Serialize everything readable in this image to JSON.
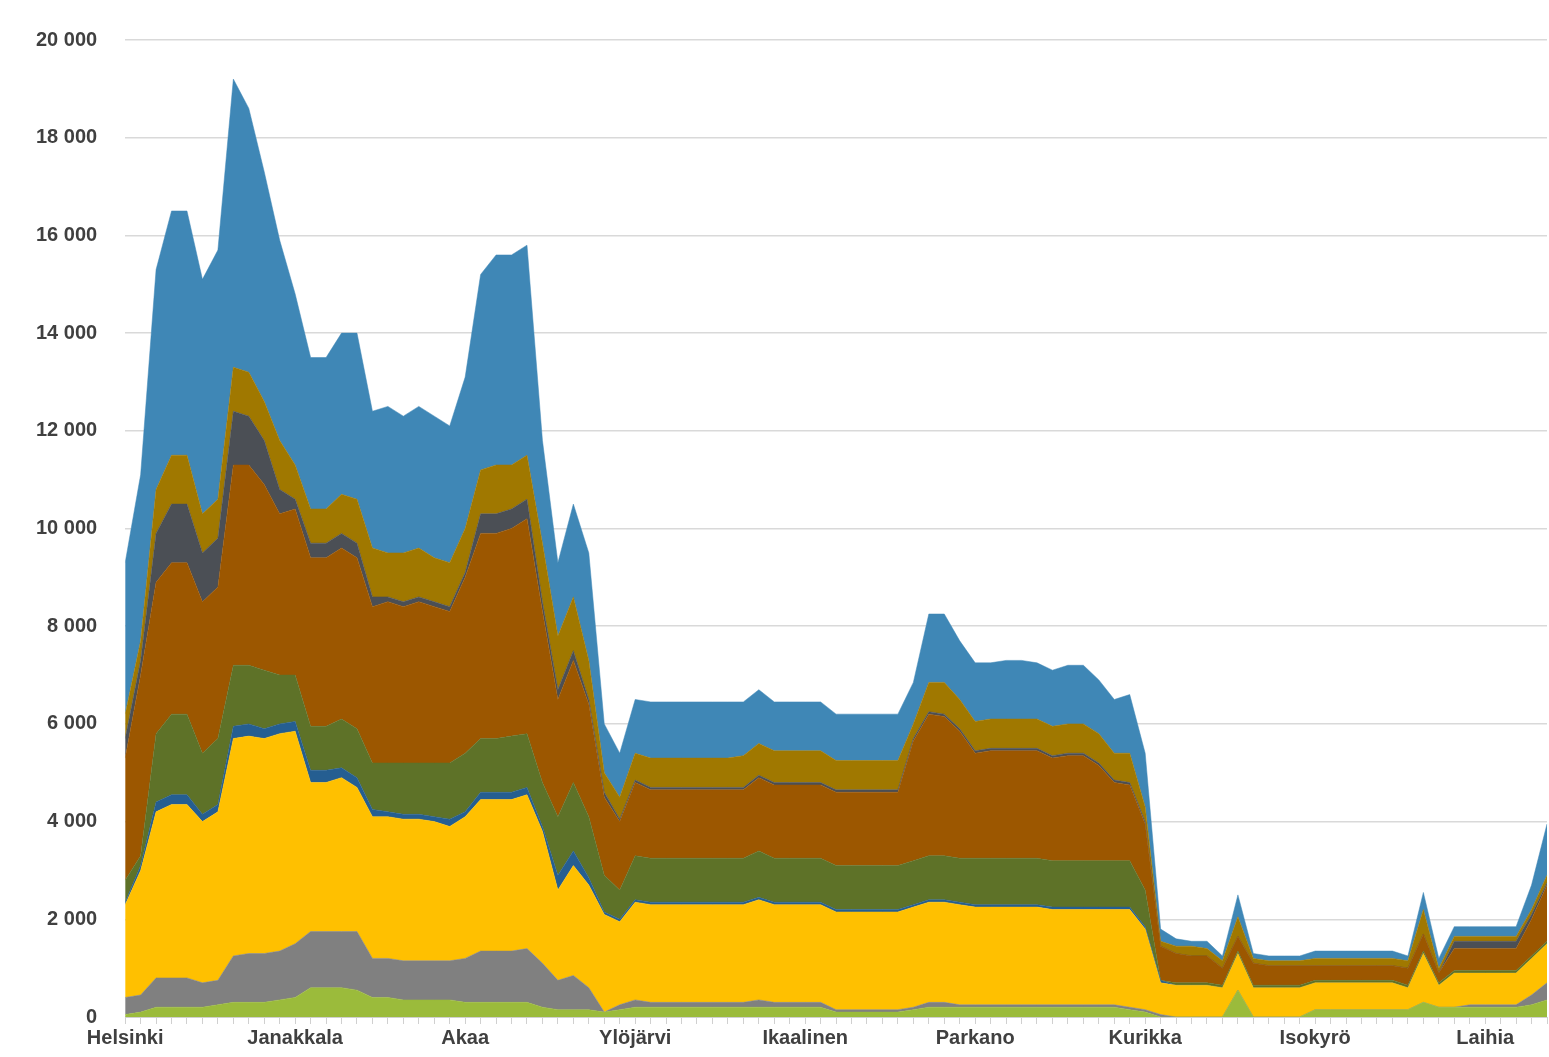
{
  "chart_data": {
    "type": "area",
    "stacked": true,
    "grid": "y",
    "legend": false,
    "marker": "none",
    "categories": [
      "Helsinki",
      null,
      null,
      null,
      null,
      null,
      null,
      null,
      null,
      null,
      null,
      "Janakkala",
      null,
      null,
      null,
      null,
      null,
      null,
      null,
      null,
      null,
      null,
      "Akaa",
      null,
      null,
      null,
      null,
      null,
      null,
      null,
      null,
      null,
      null,
      "Ylöjärvi",
      null,
      null,
      null,
      null,
      null,
      null,
      null,
      null,
      null,
      null,
      "Ikaalinen",
      null,
      null,
      null,
      null,
      null,
      null,
      null,
      null,
      null,
      null,
      "Parkano",
      null,
      null,
      null,
      null,
      null,
      null,
      null,
      null,
      null,
      null,
      "Kurikka",
      null,
      null,
      null,
      null,
      null,
      null,
      null,
      null,
      null,
      null,
      "Isokyrö",
      null,
      null,
      null,
      null,
      null,
      null,
      null,
      null,
      null,
      null,
      "Laihia",
      null,
      null,
      null,
      null
    ],
    "ylim": [
      0,
      20000
    ],
    "yticks": [
      {
        "value": 0,
        "label": "0"
      },
      {
        "value": 2000,
        "label": "2 000"
      },
      {
        "value": 4000,
        "label": "4 000"
      },
      {
        "value": 6000,
        "label": "6 000"
      },
      {
        "value": 8000,
        "label": "8 000"
      },
      {
        "value": 10000,
        "label": "10 000"
      },
      {
        "value": 12000,
        "label": "12 000"
      },
      {
        "value": 14000,
        "label": "14 000"
      },
      {
        "value": 16000,
        "label": "16 000"
      },
      {
        "value": 18000,
        "label": "18 000"
      },
      {
        "value": 20000,
        "label": "20 000"
      }
    ],
    "series": [
      {
        "color": "#9bbb3b",
        "values": [
          50,
          100,
          200,
          200,
          200,
          200,
          250,
          300,
          300,
          300,
          350,
          400,
          600,
          600,
          600,
          550,
          400,
          400,
          350,
          350,
          350,
          350,
          300,
          300,
          300,
          300,
          300,
          200,
          150,
          150,
          150,
          100,
          150,
          200,
          200,
          200,
          200,
          200,
          200,
          200,
          200,
          200,
          200,
          200,
          200,
          200,
          100,
          100,
          100,
          100,
          100,
          150,
          200,
          200,
          200,
          200,
          200,
          200,
          200,
          200,
          200,
          200,
          200,
          200,
          200,
          150,
          100,
          0,
          0,
          0,
          0,
          0,
          550,
          0,
          0,
          0,
          0,
          150,
          150,
          150,
          150,
          150,
          150,
          150,
          300,
          200,
          200,
          200,
          200,
          200,
          200,
          250,
          350
        ]
      },
      {
        "color": "#808080",
        "values": [
          350,
          350,
          600,
          600,
          600,
          500,
          500,
          950,
          1000,
          1000,
          1000,
          1100,
          1150,
          1150,
          1150,
          1200,
          800,
          800,
          800,
          800,
          800,
          800,
          900,
          1050,
          1050,
          1050,
          1100,
          900,
          600,
          700,
          450,
          0,
          100,
          150,
          100,
          100,
          100,
          100,
          100,
          100,
          100,
          150,
          100,
          100,
          100,
          100,
          50,
          50,
          50,
          50,
          50,
          50,
          100,
          100,
          50,
          50,
          50,
          50,
          50,
          50,
          50,
          50,
          50,
          50,
          50,
          50,
          50,
          50,
          0,
          0,
          0,
          0,
          0,
          0,
          0,
          0,
          0,
          0,
          0,
          0,
          0,
          0,
          0,
          0,
          0,
          0,
          0,
          50,
          50,
          50,
          50,
          200,
          350
        ]
      },
      {
        "color": "#ffc000",
        "values": [
          1900,
          2550,
          3400,
          3550,
          3550,
          3300,
          3450,
          4450,
          4450,
          4400,
          4450,
          4350,
          3050,
          3050,
          3150,
          2950,
          2900,
          2900,
          2900,
          2900,
          2850,
          2750,
          2900,
          3100,
          3100,
          3100,
          3150,
          2700,
          1850,
          2250,
          2100,
          2000,
          1700,
          2000,
          2000,
          2000,
          2000,
          2000,
          2000,
          2000,
          2000,
          2050,
          2000,
          2000,
          2000,
          2000,
          2000,
          2000,
          2000,
          2000,
          2000,
          2050,
          2050,
          2050,
          2050,
          2000,
          2000,
          2000,
          2000,
          2000,
          1950,
          1950,
          1950,
          1950,
          1950,
          2000,
          1650,
          650,
          650,
          650,
          650,
          600,
          750,
          600,
          600,
          600,
          600,
          550,
          550,
          550,
          550,
          550,
          550,
          450,
          1000,
          450,
          700,
          650,
          650,
          650,
          650,
          750,
          800
        ]
      },
      {
        "color": "#255e91",
        "values": [
          50,
          100,
          200,
          200,
          200,
          150,
          150,
          250,
          250,
          200,
          200,
          200,
          250,
          250,
          200,
          200,
          150,
          100,
          100,
          100,
          100,
          150,
          100,
          150,
          150,
          150,
          150,
          100,
          300,
          300,
          150,
          50,
          50,
          50,
          50,
          50,
          50,
          50,
          50,
          50,
          50,
          50,
          50,
          50,
          50,
          50,
          50,
          50,
          50,
          50,
          50,
          50,
          50,
          50,
          50,
          50,
          50,
          50,
          50,
          50,
          50,
          50,
          50,
          50,
          50,
          50,
          50,
          50,
          0,
          0,
          0,
          0,
          0,
          0,
          0,
          0,
          0,
          0,
          0,
          0,
          0,
          0,
          0,
          0,
          0,
          0,
          0,
          0,
          0,
          0,
          0,
          0,
          0
        ]
      },
      {
        "color": "#5e7228",
        "values": [
          450,
          200,
          1400,
          1650,
          1650,
          1250,
          1350,
          1250,
          1200,
          1200,
          1000,
          950,
          900,
          900,
          1000,
          1000,
          950,
          1000,
          1050,
          1050,
          1100,
          1150,
          1200,
          1100,
          1100,
          1150,
          1100,
          900,
          1200,
          1400,
          1250,
          750,
          600,
          900,
          900,
          900,
          900,
          900,
          900,
          900,
          900,
          950,
          900,
          900,
          900,
          900,
          900,
          900,
          900,
          900,
          900,
          900,
          900,
          900,
          900,
          950,
          950,
          950,
          950,
          950,
          950,
          950,
          950,
          950,
          950,
          950,
          750,
          0,
          50,
          50,
          50,
          50,
          50,
          50,
          50,
          50,
          50,
          50,
          50,
          50,
          50,
          50,
          50,
          50,
          50,
          50,
          50,
          50,
          50,
          50,
          50,
          50,
          50
        ]
      },
      {
        "color": "#9c5700",
        "values": [
          2500,
          3700,
          3100,
          3100,
          3100,
          3100,
          3100,
          4100,
          4100,
          3800,
          3300,
          3400,
          3450,
          3450,
          3500,
          3500,
          3200,
          3300,
          3200,
          3300,
          3200,
          3100,
          3600,
          4200,
          4200,
          4250,
          4400,
          3500,
          2400,
          2500,
          2300,
          1600,
          1400,
          1500,
          1400,
          1400,
          1400,
          1400,
          1400,
          1400,
          1400,
          1500,
          1500,
          1500,
          1500,
          1500,
          1500,
          1500,
          1500,
          1500,
          1500,
          2450,
          2900,
          2850,
          2600,
          2150,
          2200,
          2200,
          2200,
          2200,
          2100,
          2150,
          2150,
          1950,
          1600,
          1550,
          1350,
          700,
          600,
          550,
          550,
          350,
          300,
          450,
          400,
          400,
          400,
          300,
          300,
          300,
          300,
          300,
          300,
          350,
          350,
          200,
          450,
          450,
          450,
          450,
          450,
          750,
          1150
        ]
      },
      {
        "color": "#4b4f55",
        "values": [
          400,
          300,
          1000,
          1200,
          1200,
          1000,
          1000,
          1100,
          1000,
          900,
          500,
          200,
          300,
          300,
          300,
          300,
          200,
          100,
          100,
          100,
          100,
          100,
          100,
          400,
          400,
          400,
          400,
          200,
          200,
          200,
          100,
          100,
          50,
          50,
          50,
          50,
          50,
          50,
          50,
          50,
          50,
          50,
          50,
          50,
          50,
          50,
          50,
          50,
          50,
          50,
          50,
          50,
          50,
          50,
          50,
          50,
          50,
          50,
          50,
          50,
          50,
          50,
          50,
          50,
          50,
          50,
          50,
          0,
          0,
          0,
          0,
          0,
          0,
          0,
          0,
          0,
          0,
          0,
          0,
          0,
          0,
          0,
          0,
          0,
          0,
          0,
          150,
          150,
          150,
          150,
          150,
          100,
          50
        ]
      },
      {
        "color": "#a07800",
        "values": [
          500,
          400,
          900,
          1000,
          1000,
          800,
          800,
          900,
          900,
          800,
          1000,
          700,
          700,
          700,
          800,
          900,
          1000,
          900,
          1000,
          1000,
          900,
          900,
          900,
          900,
          1000,
          900,
          900,
          1200,
          1100,
          1100,
          800,
          400,
          450,
          550,
          600,
          600,
          600,
          600,
          600,
          600,
          650,
          650,
          650,
          650,
          650,
          650,
          600,
          600,
          600,
          600,
          600,
          300,
          600,
          650,
          600,
          600,
          600,
          600,
          600,
          600,
          600,
          600,
          600,
          600,
          550,
          600,
          300,
          100,
          150,
          200,
          150,
          150,
          400,
          100,
          100,
          100,
          100,
          150,
          150,
          150,
          150,
          150,
          150,
          150,
          500,
          100,
          100,
          100,
          100,
          100,
          100,
          100,
          150
        ]
      },
      {
        "color": "#3f87b6",
        "values": [
          3100,
          3400,
          4500,
          5000,
          5000,
          4800,
          5100,
          5900,
          5400,
          4700,
          4100,
          3500,
          3100,
          3100,
          3300,
          3400,
          2800,
          3000,
          2800,
          2900,
          2900,
          2800,
          3100,
          4000,
          4300,
          4300,
          4300,
          2100,
          1500,
          1900,
          2200,
          1000,
          900,
          1100,
          1150,
          1150,
          1150,
          1150,
          1150,
          1150,
          1100,
          1100,
          1000,
          1000,
          1000,
          1000,
          950,
          950,
          950,
          950,
          950,
          850,
          1400,
          1400,
          1200,
          1200,
          1150,
          1200,
          1200,
          1150,
          1150,
          1200,
          1200,
          1100,
          1100,
          1200,
          1100,
          250,
          150,
          100,
          150,
          100,
          450,
          100,
          100,
          100,
          100,
          150,
          150,
          150,
          150,
          150,
          150,
          100,
          350,
          200,
          200,
          200,
          200,
          200,
          200,
          500,
          1050
        ]
      }
    ]
  }
}
